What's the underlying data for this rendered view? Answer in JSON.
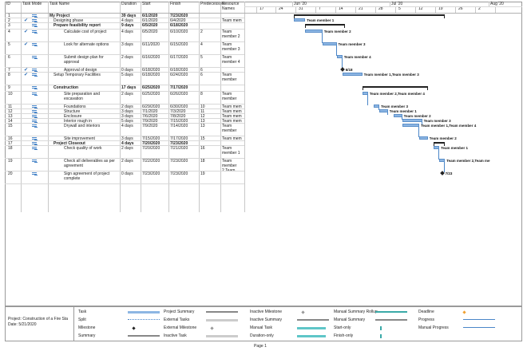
{
  "columns": [
    "ID",
    "Task Mode",
    "Task Name",
    "Duration",
    "Start",
    "Finish",
    "Predecessors",
    "Resource Names"
  ],
  "timescale": {
    "months": [
      "Jun '20",
      "Jul '20",
      "Aug '20"
    ],
    "days": [
      "17",
      "24",
      "31",
      "7",
      "14",
      "21",
      "28",
      "5",
      "12",
      "19",
      "26",
      "2"
    ]
  },
  "rows": [
    {
      "id": "1",
      "mode": "auto",
      "check": false,
      "name": "My Project",
      "duration": "39 days",
      "start": "6/1/2020",
      "finish": "7/23/2020",
      "pred": "",
      "res": "",
      "bold": true,
      "indent": 0
    },
    {
      "id": "2",
      "mode": "auto",
      "check": true,
      "name": "Designing phase",
      "duration": "4 days",
      "start": "6/1/2020",
      "finish": "6/4/2020",
      "pred": "",
      "res": "Team mem",
      "bold": false,
      "indent": 1
    },
    {
      "id": "3",
      "mode": "auto",
      "check": false,
      "name": "Prepare feasibility report",
      "duration": "9 days",
      "start": "6/5/2020",
      "finish": "6/18/2020",
      "pred": "",
      "res": "",
      "bold": true,
      "indent": 1
    },
    {
      "id": "4",
      "mode": "auto",
      "check": true,
      "name": "Calculate cost of project",
      "duration": "4 days",
      "start": "6/5/2020",
      "finish": "6/10/2020",
      "pred": "2",
      "res": "Team member 2",
      "bold": false,
      "indent": 2
    },
    {
      "id": "5",
      "mode": "auto",
      "check": true,
      "name": "Look for alternate options",
      "duration": "3 days",
      "start": "6/11/2020",
      "finish": "6/15/2020",
      "pred": "4",
      "res": "Team member 3",
      "bold": false,
      "indent": 2
    },
    {
      "id": "6",
      "mode": "auto",
      "check": false,
      "name": "Submit design plan for approval",
      "duration": "2 days",
      "start": "6/16/2020",
      "finish": "6/17/2020",
      "pred": "5",
      "res": "Team member 4",
      "bold": false,
      "indent": 2
    },
    {
      "id": "7",
      "mode": "auto",
      "check": true,
      "name": "Approval of design",
      "duration": "0 days",
      "start": "6/18/2020",
      "finish": "6/18/2020",
      "pred": "6",
      "res": "",
      "bold": false,
      "indent": 2
    },
    {
      "id": "8",
      "mode": "auto",
      "check": true,
      "name": "Setup Temporary Facilities",
      "duration": "5 days",
      "start": "6/18/2020",
      "finish": "6/24/2020",
      "pred": "6",
      "res": "Team member",
      "bold": false,
      "indent": 1
    },
    {
      "id": "9",
      "mode": "auto",
      "check": false,
      "name": "Construction",
      "duration": "17 days",
      "start": "6/25/2020",
      "finish": "7/17/2020",
      "pred": "",
      "res": "",
      "bold": true,
      "indent": 1
    },
    {
      "id": "10",
      "mode": "auto",
      "check": false,
      "name": "Site preparation and excavation",
      "duration": "2 days",
      "start": "6/25/2020",
      "finish": "6/26/2020",
      "pred": "8",
      "res": "Team member",
      "bold": false,
      "indent": 2
    },
    {
      "id": "11",
      "mode": "auto",
      "check": false,
      "name": "Foundations",
      "duration": "2 days",
      "start": "6/29/2020",
      "finish": "6/30/2020",
      "pred": "10",
      "res": "Team mem",
      "bold": false,
      "indent": 2
    },
    {
      "id": "12",
      "mode": "auto",
      "check": false,
      "name": "Structure",
      "duration": "3 days",
      "start": "7/1/2020",
      "finish": "7/3/2020",
      "pred": "11",
      "res": "Team mem",
      "bold": false,
      "indent": 2
    },
    {
      "id": "13",
      "mode": "auto",
      "check": false,
      "name": "Enclosure",
      "duration": "3 days",
      "start": "7/6/2020",
      "finish": "7/8/2020",
      "pred": "12",
      "res": "Team mem",
      "bold": false,
      "indent": 2
    },
    {
      "id": "14",
      "mode": "auto",
      "check": false,
      "name": "Interior rough in",
      "duration": "5 days",
      "start": "7/9/2020",
      "finish": "7/15/2020",
      "pred": "13",
      "res": "Team mem",
      "bold": false,
      "indent": 2
    },
    {
      "id": "15",
      "mode": "auto",
      "check": false,
      "name": "Drywall and interiors",
      "duration": "4 days",
      "start": "7/9/2020",
      "finish": "7/14/2020",
      "pred": "13",
      "res": "Team member",
      "bold": false,
      "indent": 2
    },
    {
      "id": "16",
      "mode": "auto",
      "check": false,
      "name": "Site improvement",
      "duration": "3 days",
      "start": "7/15/2020",
      "finish": "7/17/2020",
      "pred": "15",
      "res": "Team mem",
      "bold": false,
      "indent": 2
    },
    {
      "id": "17",
      "mode": "auto",
      "check": false,
      "name": "Project Closeout",
      "duration": "4 days",
      "start": "7/20/2020",
      "finish": "7/23/2020",
      "pred": "",
      "res": "",
      "bold": true,
      "indent": 1
    },
    {
      "id": "18",
      "mode": "auto",
      "check": false,
      "name": "Check quality of work",
      "duration": "2 days",
      "start": "7/20/2020",
      "finish": "7/21/2020",
      "pred": "16",
      "res": "Team member 1",
      "bold": false,
      "indent": 2
    },
    {
      "id": "19",
      "mode": "auto",
      "check": false,
      "name": "Check all deliverables as per agreement",
      "duration": "2 days",
      "start": "7/22/2020",
      "finish": "7/23/2020",
      "pred": "18",
      "res": "Team member 2,Team",
      "bold": false,
      "indent": 2
    },
    {
      "id": "20",
      "mode": "auto",
      "check": false,
      "name": "Sign agreement of project complete",
      "duration": "0 days",
      "start": "7/23/2020",
      "finish": "7/23/2020",
      "pred": "19",
      "res": "",
      "bold": false,
      "indent": 2
    }
  ],
  "bars": {
    "2": "Team member 1",
    "4": "Team member 2",
    "5": "Team member 3",
    "6": "Team member 4",
    "7": "6/18",
    "8": "Team member 1,Team member 3",
    "10": "Team member 2,Team member 4",
    "11": "Team member 3",
    "12": "Team member 1",
    "13": "Team member 2",
    "14": "Team member 3",
    "15": "Team member 1,Team member 4",
    "16": "Team member 2",
    "18": "Team member 1",
    "19": "Team member 2,Team me",
    "20": "7/23"
  },
  "footer": {
    "project": "Project: Construction of a Fire Sta",
    "date": "Date: 5/21/2020",
    "page": "Page 1"
  },
  "legend": [
    [
      "Task",
      "Project Summary",
      "Inactive Milestone",
      "Manual Summary Rollup",
      "Deadline"
    ],
    [
      "Split",
      "External Tasks",
      "Inactive Summary",
      "Manual Summary",
      "Progress"
    ],
    [
      "Milestone",
      "External Milestone",
      "Manual Task",
      "Start-only",
      "Manual Progress"
    ],
    [
      "Summary",
      "Inactive Task",
      "Duration-only",
      "Finish-only",
      ""
    ]
  ],
  "colors": {
    "task": "#8db6e3",
    "deadline": "#f0a030",
    "progress": "#4a86c8",
    "manual": "#5fc6c8"
  }
}
